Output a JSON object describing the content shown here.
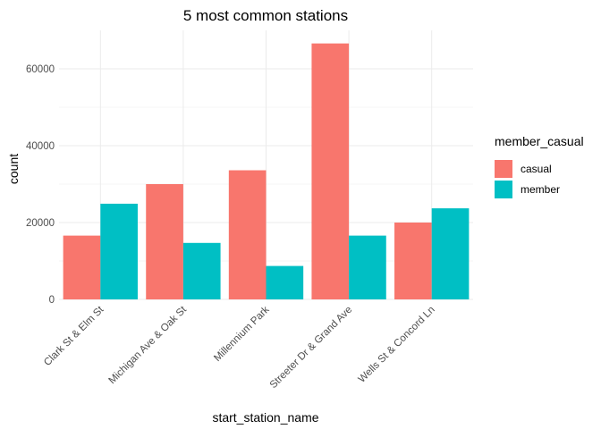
{
  "chart_data": {
    "type": "bar",
    "title": "5 most common stations",
    "xlabel": "start_station_name",
    "ylabel": "count",
    "categories": [
      "Clark St & Elm St",
      "Michigan Ave & Oak St",
      "Millennium Park",
      "Streeter Dr & Grand Ave",
      "Wells St & Concord Ln"
    ],
    "series": [
      {
        "name": "casual",
        "color": "#F8766D",
        "values": [
          16600,
          30000,
          33600,
          66600,
          20000
        ]
      },
      {
        "name": "member",
        "color": "#00BFC4",
        "values": [
          24900,
          14700,
          8700,
          16600,
          23700
        ]
      }
    ],
    "legend": {
      "title": "member_casual",
      "position": "right"
    },
    "ylim": [
      0,
      70000
    ],
    "yticks": [
      0,
      20000,
      40000,
      60000
    ],
    "ytick_labels": [
      "0",
      "20000",
      "40000",
      "60000"
    ],
    "grid": true
  }
}
